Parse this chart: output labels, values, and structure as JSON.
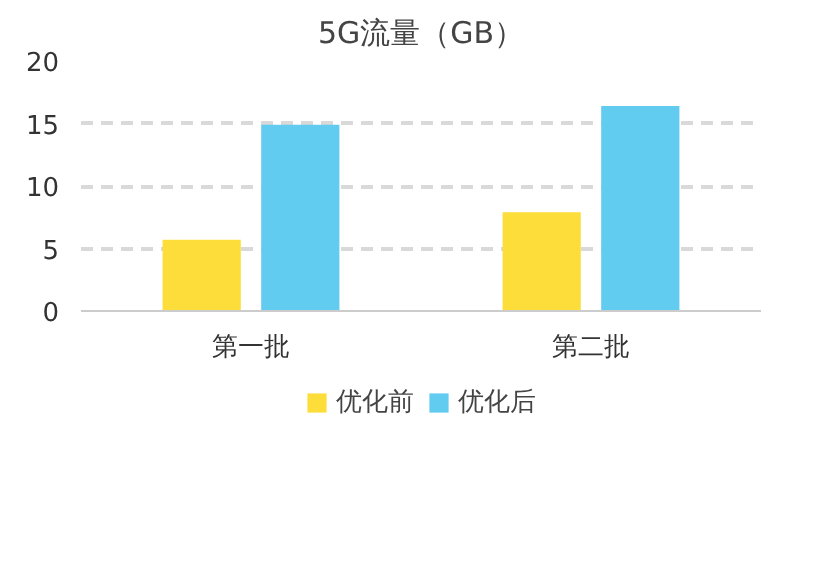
{
  "chart_data": {
    "type": "bar",
    "title": "5G流量（GB）",
    "categories": [
      "第一批",
      "第二批"
    ],
    "series": [
      {
        "name": "优化前",
        "color": "#fddd3a",
        "values": [
          5.7,
          7.9
        ]
      },
      {
        "name": "优化后",
        "color": "#62cbf0",
        "values": [
          14.9,
          16.4
        ]
      }
    ],
    "ylim": [
      0,
      20
    ],
    "yticks": [
      0,
      5,
      10,
      15,
      20
    ],
    "grid": "y",
    "legend": "bottom"
  }
}
